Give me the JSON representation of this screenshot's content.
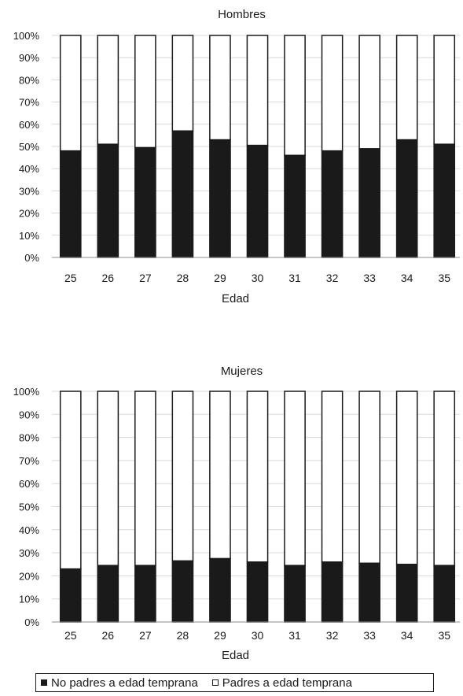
{
  "chart_data": [
    {
      "type": "bar",
      "stacked": true,
      "percent_stacked": true,
      "title": "Hombres",
      "xlabel": "Edad",
      "ylabel": "",
      "ylim": [
        0,
        100
      ],
      "yticks": [
        "0%",
        "10%",
        "20%",
        "30%",
        "40%",
        "50%",
        "60%",
        "70%",
        "80%",
        "90%",
        "100%"
      ],
      "categories": [
        "25",
        "26",
        "27",
        "28",
        "29",
        "30",
        "31",
        "32",
        "33",
        "34",
        "35"
      ],
      "grid": true,
      "series": [
        {
          "name": "No padres a edad temprana",
          "color": "#1a1a1a",
          "values": [
            48,
            51,
            49.5,
            57,
            53,
            50.5,
            46,
            48,
            49,
            53,
            51
          ]
        },
        {
          "name": "Padres a edad temprana",
          "color": "#ffffff",
          "values": [
            52,
            49,
            50.5,
            43,
            47,
            49.5,
            54,
            52,
            51,
            47,
            49
          ]
        }
      ]
    },
    {
      "type": "bar",
      "stacked": true,
      "percent_stacked": true,
      "title": "Mujeres",
      "xlabel": "Edad",
      "ylabel": "",
      "ylim": [
        0,
        100
      ],
      "yticks": [
        "0%",
        "10%",
        "20%",
        "30%",
        "40%",
        "50%",
        "60%",
        "70%",
        "80%",
        "90%",
        "100%"
      ],
      "categories": [
        "25",
        "26",
        "27",
        "28",
        "29",
        "30",
        "31",
        "32",
        "33",
        "34",
        "35"
      ],
      "grid": true,
      "series": [
        {
          "name": "No padres a edad temprana",
          "color": "#1a1a1a",
          "values": [
            23,
            24.5,
            24.5,
            26.5,
            27.5,
            26,
            24.5,
            26,
            25.5,
            25,
            24.5
          ]
        },
        {
          "name": "Padres a edad temprana",
          "color": "#ffffff",
          "values": [
            77,
            75.5,
            75.5,
            73.5,
            72.5,
            74,
            75.5,
            74,
            74.5,
            75,
            75.5
          ]
        }
      ]
    }
  ],
  "legend": {
    "placement": "bottom",
    "items": [
      {
        "label": "No padres a edad temprana",
        "color": "#1a1a1a"
      },
      {
        "label": "Padres a edad temprana",
        "color": "#ffffff"
      }
    ]
  }
}
